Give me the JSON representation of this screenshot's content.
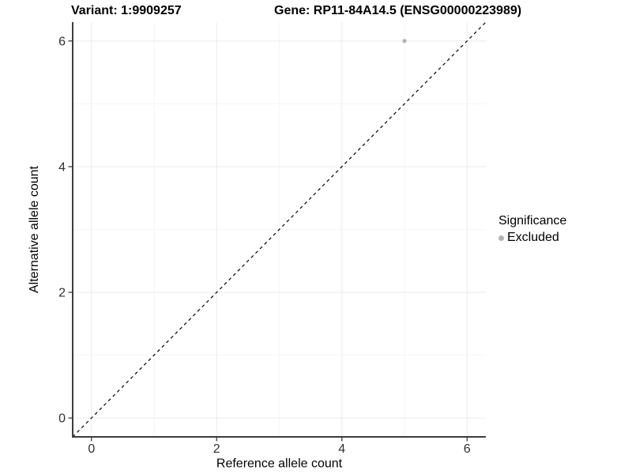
{
  "header": {
    "variant_title": "Variant: 1:9909257",
    "gene_title": "Gene: RP11-84A14.5 (ENSG00000223989)"
  },
  "chart_data": {
    "type": "scatter",
    "title_left": "Variant: 1:9909257",
    "title_right": "Gene: RP11-84A14.5 (ENSG00000223989)",
    "xlabel": "Reference allele count",
    "ylabel": "Alternative allele count",
    "xlim": [
      -0.3,
      6.3
    ],
    "ylim": [
      -0.3,
      6.3
    ],
    "x_ticks": [
      0,
      2,
      4,
      6
    ],
    "y_ticks": [
      0,
      2,
      4,
      6
    ],
    "x_minor_gridlines": [
      1,
      3,
      5
    ],
    "y_minor_gridlines": [
      1,
      3,
      5
    ],
    "grid": true,
    "points": [
      {
        "x": 5,
        "y": 6,
        "series": "Excluded"
      }
    ],
    "reference_line": {
      "kind": "diagonal",
      "slope": 1,
      "intercept": 0,
      "style": "dashed"
    },
    "legend": {
      "title": "Significance",
      "position": "right",
      "items": [
        {
          "label": "Excluded",
          "color": "#b3b3b3",
          "marker": "circle"
        }
      ]
    },
    "colors": {
      "background": "#ffffff",
      "grid_major": "#ebebeb",
      "grid_minor": "#f5f5f5",
      "axis_line": "#3c3c3c",
      "tick_text": "#303030",
      "axis_title_text": "#000000",
      "dashed_line": "#000000",
      "point": "#b3b3b3"
    }
  }
}
